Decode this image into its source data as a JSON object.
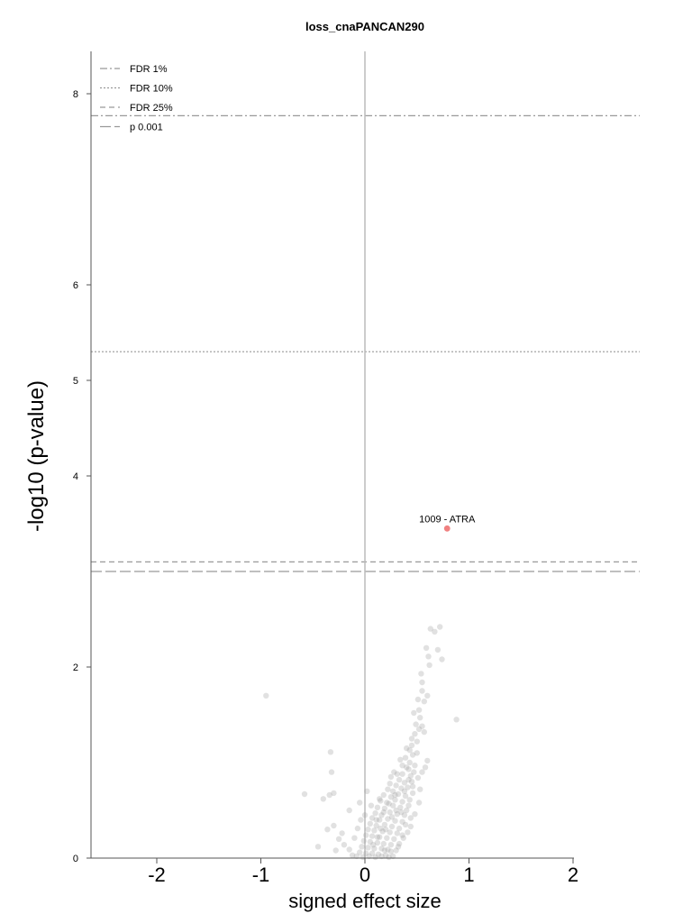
{
  "chart_data": {
    "type": "scatter",
    "title": "loss_cnaPANCAN290",
    "xlabel": "signed effect size",
    "ylabel": "-log10 (p-value)",
    "xlim": [
      -2.65,
      2.65
    ],
    "ylim": [
      0,
      8.5
    ],
    "xticks": [
      -2,
      -1,
      0,
      1,
      2
    ],
    "xtick_labels": [
      "-2",
      "-1",
      "0",
      "1",
      "2"
    ],
    "yticks": [
      0,
      2,
      4,
      5,
      6,
      8
    ],
    "ytick_labels": [
      "0",
      "2",
      "4",
      "5",
      "6",
      "8"
    ],
    "legend_position": "top-left",
    "legend": [
      {
        "label": "FDR 1%",
        "style": "dashdot",
        "y": 7.77
      },
      {
        "label": "FDR 10%",
        "style": "dotted",
        "y": 5.3
      },
      {
        "label": "FDR 25%",
        "style": "dashed",
        "y": 3.1
      },
      {
        "label": "p 0.001",
        "style": "longdash",
        "y": 3.0
      }
    ],
    "colors": {
      "point": "#9a9a9a",
      "highlight": "#f08080",
      "threshold": "#999999",
      "zero_line": "#bbbbbb",
      "axis": "#555555"
    },
    "highlight": {
      "x": 0.79,
      "y": 3.45,
      "label": "1009 - ATRA"
    },
    "points": [
      [
        -0.95,
        1.7
      ],
      [
        -0.58,
        0.67
      ],
      [
        -0.4,
        0.62
      ],
      [
        -0.34,
        0.66
      ],
      [
        -0.33,
        1.11
      ],
      [
        -0.32,
        0.9
      ],
      [
        -0.3,
        0.68
      ],
      [
        0.88,
        1.45
      ],
      [
        0.63,
        2.4
      ],
      [
        0.67,
        2.37
      ],
      [
        0.72,
        2.42
      ],
      [
        0.7,
        2.18
      ],
      [
        0.74,
        2.08
      ],
      [
        0.59,
        2.2
      ],
      [
        0.61,
        2.11
      ],
      [
        0.62,
        2.02
      ],
      [
        0.54,
        1.93
      ],
      [
        0.55,
        1.84
      ],
      [
        0.57,
        1.64
      ],
      [
        0.51,
        1.66
      ],
      [
        0.6,
        1.7
      ],
      [
        0.52,
        1.55
      ],
      [
        0.53,
        1.47
      ],
      [
        0.55,
        1.38
      ],
      [
        0.49,
        1.4
      ],
      [
        0.48,
        1.3
      ],
      [
        0.57,
        1.32
      ],
      [
        0.5,
        1.22
      ],
      [
        0.45,
        1.18
      ],
      [
        0.43,
        1.13
      ],
      [
        0.46,
        1.08
      ],
      [
        0.39,
        1.05
      ],
      [
        0.43,
        1.0
      ],
      [
        0.36,
        0.97
      ],
      [
        0.48,
        0.97
      ],
      [
        0.58,
        0.95
      ],
      [
        0.31,
        0.88
      ],
      [
        0.36,
        0.88
      ],
      [
        0.42,
        0.93
      ],
      [
        0.47,
        0.9
      ],
      [
        0.25,
        0.85
      ],
      [
        0.33,
        0.82
      ],
      [
        0.44,
        0.86
      ],
      [
        0.51,
        0.84
      ],
      [
        0.24,
        0.78
      ],
      [
        0.3,
        0.76
      ],
      [
        0.38,
        0.79
      ],
      [
        0.45,
        0.8
      ],
      [
        0.22,
        0.72
      ],
      [
        0.27,
        0.7
      ],
      [
        0.35,
        0.73
      ],
      [
        0.41,
        0.74
      ],
      [
        0.18,
        0.66
      ],
      [
        0.25,
        0.64
      ],
      [
        0.32,
        0.67
      ],
      [
        0.39,
        0.65
      ],
      [
        0.46,
        0.68
      ],
      [
        0.15,
        0.6
      ],
      [
        0.21,
        0.58
      ],
      [
        0.29,
        0.61
      ],
      [
        0.36,
        0.59
      ],
      [
        0.43,
        0.61
      ],
      [
        0.12,
        0.53
      ],
      [
        0.19,
        0.52
      ],
      [
        0.27,
        0.55
      ],
      [
        0.34,
        0.53
      ],
      [
        0.4,
        0.5
      ],
      [
        0.1,
        0.47
      ],
      [
        0.16,
        0.45
      ],
      [
        0.24,
        0.48
      ],
      [
        0.31,
        0.46
      ],
      [
        0.38,
        0.45
      ],
      [
        0.07,
        0.42
      ],
      [
        0.14,
        0.4
      ],
      [
        0.22,
        0.41
      ],
      [
        0.29,
        0.39
      ],
      [
        0.36,
        0.38
      ],
      [
        0.05,
        0.36
      ],
      [
        0.11,
        0.34
      ],
      [
        0.19,
        0.35
      ],
      [
        0.26,
        0.33
      ],
      [
        0.33,
        0.31
      ],
      [
        0.44,
        0.33
      ],
      [
        0.03,
        0.3
      ],
      [
        0.09,
        0.29
      ],
      [
        0.17,
        0.28
      ],
      [
        0.24,
        0.27
      ],
      [
        0.31,
        0.26
      ],
      [
        0.41,
        0.27
      ],
      [
        0.01,
        0.24
      ],
      [
        0.07,
        0.23
      ],
      [
        0.14,
        0.22
      ],
      [
        0.21,
        0.21
      ],
      [
        0.28,
        0.2
      ],
      [
        0.37,
        0.21
      ],
      [
        -0.01,
        0.18
      ],
      [
        0.05,
        0.17
      ],
      [
        0.12,
        0.16
      ],
      [
        0.18,
        0.15
      ],
      [
        0.25,
        0.14
      ],
      [
        0.33,
        0.15
      ],
      [
        -0.03,
        0.12
      ],
      [
        0.03,
        0.11
      ],
      [
        0.09,
        0.1
      ],
      [
        0.16,
        0.1
      ],
      [
        0.22,
        0.09
      ],
      [
        0.3,
        0.08
      ],
      [
        -0.05,
        0.06
      ],
      [
        0.01,
        0.05
      ],
      [
        0.07,
        0.05
      ],
      [
        0.13,
        0.04
      ],
      [
        0.2,
        0.03
      ],
      [
        0.27,
        0.02
      ],
      [
        -0.08,
        0.02
      ],
      [
        0.04,
        0.02
      ],
      [
        0.1,
        0.01
      ],
      [
        -0.12,
        0.03
      ],
      [
        -0.02,
        0.01
      ],
      [
        0.16,
        0.02
      ],
      [
        0.23,
        0.01
      ],
      [
        -0.2,
        0.14
      ],
      [
        -0.22,
        0.26
      ],
      [
        -0.25,
        0.2
      ],
      [
        -0.28,
        0.08
      ],
      [
        -0.15,
        0.09
      ],
      [
        -0.1,
        0.21
      ],
      [
        -0.07,
        0.31
      ],
      [
        -0.04,
        0.4
      ],
      [
        -0.3,
        0.34
      ],
      [
        -0.36,
        0.3
      ],
      [
        -0.45,
        0.12
      ],
      [
        -0.15,
        0.5
      ],
      [
        -0.05,
        0.58
      ],
      [
        0.02,
        0.7
      ],
      [
        0.06,
        0.55
      ],
      [
        0.0,
        0.45
      ],
      [
        0.14,
        0.62
      ],
      [
        0.28,
        0.9
      ],
      [
        0.34,
        1.03
      ],
      [
        0.4,
        1.15
      ],
      [
        0.45,
        1.25
      ],
      [
        0.52,
        1.35
      ],
      [
        0.47,
        1.52
      ],
      [
        0.55,
        1.75
      ],
      [
        0.5,
        1.1
      ],
      [
        0.53,
        0.72
      ],
      [
        0.42,
        0.55
      ],
      [
        0.35,
        0.48
      ],
      [
        0.48,
        0.46
      ],
      [
        0.52,
        0.58
      ],
      [
        0.55,
        0.9
      ],
      [
        0.6,
        1.02
      ],
      [
        0.39,
        0.35
      ],
      [
        0.44,
        0.42
      ],
      [
        0.3,
        0.5
      ],
      [
        0.26,
        0.43
      ],
      [
        0.2,
        0.3
      ],
      [
        0.15,
        0.31
      ],
      [
        0.12,
        0.22
      ],
      [
        0.08,
        0.14
      ],
      [
        0.19,
        0.08
      ],
      [
        0.25,
        0.07
      ],
      [
        0.32,
        0.12
      ],
      [
        0.36,
        0.24
      ],
      [
        0.29,
        0.66
      ],
      [
        0.23,
        0.57
      ],
      [
        0.18,
        0.48
      ],
      [
        0.11,
        0.4
      ],
      [
        0.38,
        0.7
      ],
      [
        0.42,
        0.82
      ],
      [
        0.46,
        0.75
      ],
      [
        0.4,
        0.95
      ]
    ]
  }
}
